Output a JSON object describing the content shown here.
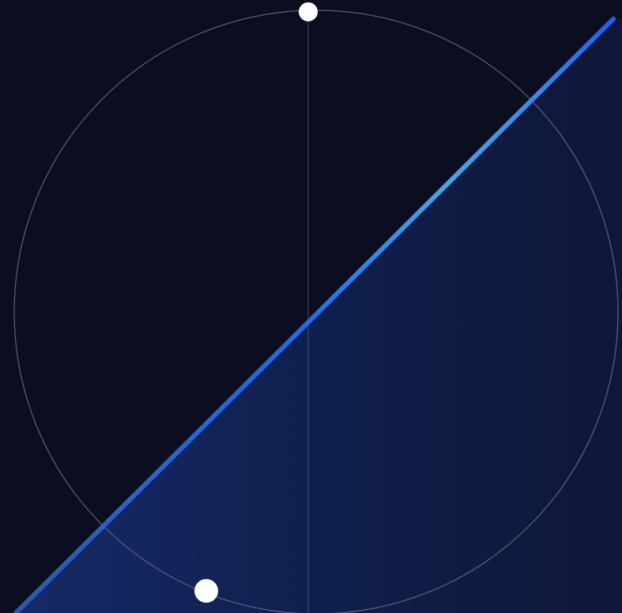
{
  "colors": {
    "background": "#0a0e20",
    "fill_region": "#10204f",
    "fill_region_dark": "#0e1738",
    "line_start": "#2a5fb8",
    "line_mid": "#246cf2",
    "line_light": "#4aa0e0",
    "line_end": "#1e5ef5",
    "circle_stroke": "#7a7f8c",
    "axis_stroke": "#5a5f6c",
    "handle": "#ffffff"
  },
  "handles": [
    {
      "name": "top-handle"
    },
    {
      "name": "bottom-handle"
    }
  ]
}
